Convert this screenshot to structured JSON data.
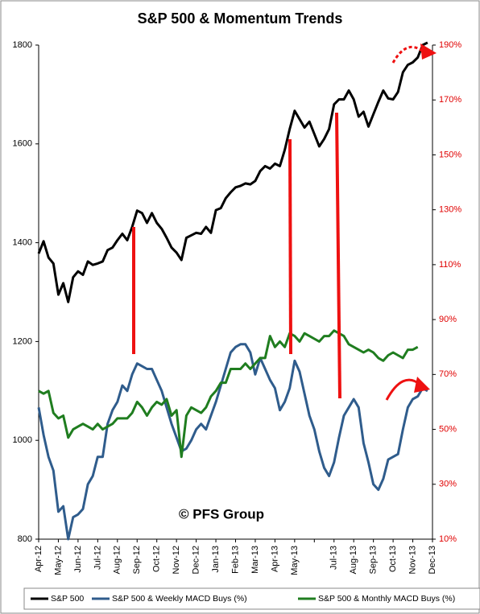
{
  "chart_data": {
    "type": "line",
    "title": "S&P 500 & Momentum Trends",
    "watermark": "© PFS Group",
    "categories": [
      "Apr-12",
      null,
      null,
      null,
      "May-12",
      null,
      null,
      null,
      "Jun-12",
      null,
      null,
      null,
      "Jul-12",
      null,
      null,
      null,
      "Aug-12",
      null,
      null,
      null,
      "Sep-12",
      null,
      null,
      null,
      "Oct-12",
      null,
      null,
      null,
      "Nov-12",
      null,
      null,
      null,
      "Dec-12",
      null,
      null,
      null,
      "Jan-13",
      null,
      null,
      null,
      "Feb-13",
      null,
      null,
      null,
      "Mar-13",
      null,
      null,
      null,
      "Apr-13",
      null,
      null,
      null,
      "May-13",
      null,
      null,
      null,
      null,
      null,
      null,
      null,
      "Jul-13",
      null,
      null,
      null,
      "Aug-13",
      null,
      null,
      null,
      "Sep-13",
      null,
      null,
      null,
      "Oct-13",
      null,
      null,
      null,
      "Nov-13",
      null,
      null,
      null,
      "Dec-13"
    ],
    "series": [
      {
        "name": "S&P 500",
        "color": "#000000",
        "values": [
          1378,
          1403,
          1370,
          1358,
          1295,
          1318,
          1280,
          1330,
          1342,
          1335,
          1362,
          1355,
          1358,
          1362,
          1385,
          1390,
          1405,
          1418,
          1405,
          1432,
          1465,
          1460,
          1440,
          1460,
          1440,
          1428,
          1410,
          1390,
          1380,
          1365,
          1410,
          1415,
          1420,
          1418,
          1432,
          1420,
          1466,
          1470,
          1490,
          1502,
          1512,
          1515,
          1520,
          1518,
          1525,
          1545,
          1555,
          1550,
          1560,
          1555,
          1588,
          1630,
          1667,
          1650,
          1633,
          1645,
          1620,
          1595,
          1610,
          1630,
          1680,
          1690,
          1690,
          1708,
          1690,
          1655,
          1665,
          1635,
          1660,
          1685,
          1708,
          1692,
          1690,
          1705,
          1745,
          1760,
          1765,
          1775,
          1800,
          1805,
          null
        ]
      },
      {
        "name": "S&P 500 & Weekly MACD Buys (%)",
        "color": "#2f5c8c",
        "axis": "y2",
        "values": [
          58,
          48,
          40,
          35,
          20,
          22,
          10,
          18,
          19,
          21,
          30,
          33,
          40,
          40,
          52,
          57,
          60,
          66,
          64,
          70,
          74,
          73,
          72,
          72,
          68,
          64,
          58,
          52,
          47,
          42,
          43,
          46,
          50,
          52,
          50,
          55,
          60,
          66,
          72,
          78,
          80,
          81,
          81,
          78,
          70,
          76,
          72,
          68,
          65,
          57,
          60,
          65,
          75,
          71,
          63,
          55,
          50,
          42,
          36,
          33,
          38,
          47,
          55,
          58,
          61,
          58,
          45,
          38,
          30,
          28,
          32,
          39,
          40,
          41,
          50,
          58,
          61,
          62,
          65,
          64,
          null
        ]
      },
      {
        "name": "S&P 500 & Monthly MACD Buys (%)",
        "color": "#1f7d1f",
        "axis": "y2",
        "values": [
          64,
          63,
          64,
          56,
          54,
          55,
          47,
          50,
          51,
          52,
          51,
          50,
          52,
          50,
          51,
          52,
          54,
          54,
          54,
          56,
          60,
          58,
          55,
          58,
          60,
          59,
          61,
          55,
          57,
          40,
          55,
          58,
          57,
          56,
          58,
          62,
          64,
          67,
          67,
          72,
          72,
          72,
          74,
          72,
          74,
          76,
          76,
          84,
          80,
          82,
          80,
          85,
          84,
          82,
          85,
          84,
          83,
          82,
          84,
          84,
          86,
          85,
          84,
          81,
          80,
          79,
          78,
          79,
          78,
          76,
          75,
          77,
          78,
          77,
          76,
          79,
          79,
          80,
          null,
          null,
          null
        ]
      }
    ],
    "ylim": [
      800,
      1800
    ],
    "yticks": [
      800,
      1000,
      1200,
      1400,
      1600,
      1800
    ],
    "y2lim": [
      10,
      190
    ],
    "y2ticks": [
      {
        "value": 10,
        "label": "10%"
      },
      {
        "value": 30,
        "label": "30%"
      },
      {
        "value": 50,
        "label": "50%"
      },
      {
        "value": 70,
        "label": "70%"
      },
      {
        "value": 90,
        "label": "90%"
      },
      {
        "value": 110,
        "label": "110%"
      },
      {
        "value": 130,
        "label": "130%"
      },
      {
        "value": 150,
        "label": "150%"
      },
      {
        "value": 170,
        "label": "170%"
      },
      {
        "value": 190,
        "label": "190%"
      }
    ],
    "grid": false
  }
}
